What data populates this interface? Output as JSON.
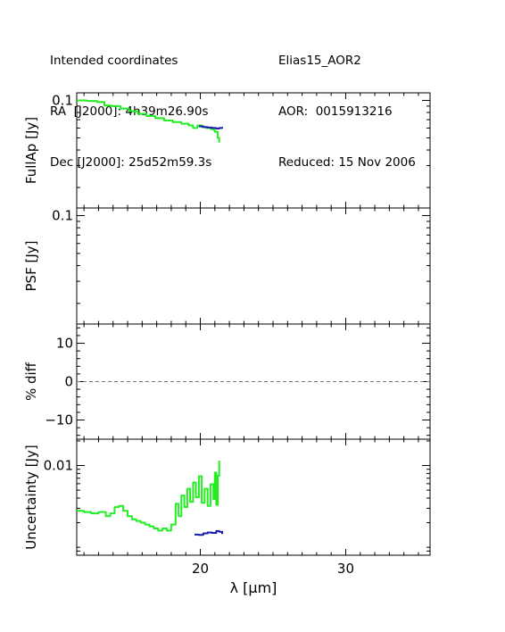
{
  "header": {
    "left": [
      "Intended coordinates",
      "RA  [J2000]: 4h39m26.90s",
      "Dec [J2000]: 25d52m59.3s"
    ],
    "right": [
      "Elias15_AOR2",
      "AOR:  0015913216",
      "Reduced: 15 Nov 2006"
    ]
  },
  "colors": {
    "green": "#22ee22",
    "blue": "#1a1ab0",
    "axis": "#000000",
    "dash": "#777777"
  },
  "chart_data": [
    {
      "type": "line",
      "ylabel": "FullAp [Jy]",
      "yscale": "log",
      "ylim": [
        0.0137,
        0.115
      ],
      "xlim": [
        11.5,
        35.8
      ],
      "yticks": [
        {
          "value": 0.1,
          "label": "0.1"
        }
      ],
      "series": [
        {
          "color": "green",
          "x": [
            11.5,
            12.2,
            12.9,
            13.4,
            13.9,
            14.5,
            15.1,
            15.7,
            16.3,
            16.9,
            17.5,
            18.1,
            18.7,
            19.2,
            19.5,
            19.8,
            20.1,
            20.4,
            20.7,
            20.9,
            21.0,
            21.2,
            21.3
          ],
          "y": [
            0.1,
            0.099,
            0.097,
            0.091,
            0.09,
            0.086,
            0.082,
            0.078,
            0.075,
            0.072,
            0.069,
            0.067,
            0.065,
            0.063,
            0.06,
            0.063,
            0.061,
            0.06,
            0.059,
            0.058,
            0.056,
            0.05,
            0.046
          ]
        },
        {
          "color": "blue",
          "x": [
            19.9,
            20.2,
            20.5,
            20.8,
            21.1,
            21.3,
            21.5
          ],
          "y": [
            0.062,
            0.061,
            0.0605,
            0.06,
            0.0595,
            0.06,
            0.0612
          ]
        }
      ]
    },
    {
      "type": "line",
      "ylabel": "PSF [Jy]",
      "yscale": "log",
      "ylim": [
        0.0137,
        0.115
      ],
      "xlim": [
        11.5,
        35.8
      ],
      "yticks": [
        {
          "value": 0.1,
          "label": "0.1"
        }
      ],
      "series": []
    },
    {
      "type": "line",
      "ylabel": "% diff",
      "yscale": "linear",
      "ylim": [
        -15,
        15
      ],
      "xlim": [
        11.5,
        35.8
      ],
      "yticks": [
        {
          "value": 10,
          "label": "10"
        },
        {
          "value": 0,
          "label": "0"
        },
        {
          "value": -10,
          "label": "−10"
        }
      ],
      "reference_line": {
        "y": 0,
        "style": "dashed"
      },
      "series": []
    },
    {
      "type": "line",
      "ylabel": "Uncertainty [Jy]",
      "xlabel": "λ [μm]",
      "yscale": "log",
      "ylim": [
        0.0008,
        0.021
      ],
      "xlim": [
        11.5,
        35.8
      ],
      "yticks": [
        {
          "value": 0.01,
          "label": "0.01"
        }
      ],
      "xticks": [
        {
          "value": 20,
          "label": "20"
        },
        {
          "value": 30,
          "label": "30"
        }
      ],
      "series": [
        {
          "color": "green",
          "x": [
            11.5,
            12.0,
            12.5,
            13.0,
            13.5,
            13.8,
            14.1,
            14.4,
            14.7,
            15.0,
            15.3,
            15.6,
            15.9,
            16.2,
            16.5,
            16.8,
            17.1,
            17.4,
            17.7,
            18.0,
            18.3,
            18.5,
            18.7,
            18.9,
            19.1,
            19.3,
            19.5,
            19.7,
            19.9,
            20.1,
            20.3,
            20.5,
            20.7,
            20.9,
            21.0,
            21.1,
            21.2,
            21.3
          ],
          "y": [
            0.0028,
            0.0027,
            0.0026,
            0.0027,
            0.0024,
            0.0026,
            0.0031,
            0.0032,
            0.0028,
            0.0024,
            0.0022,
            0.0021,
            0.002,
            0.0019,
            0.0018,
            0.0017,
            0.0016,
            0.0017,
            0.0016,
            0.0019,
            0.0034,
            0.0024,
            0.0043,
            0.0031,
            0.0052,
            0.0036,
            0.0062,
            0.0041,
            0.0074,
            0.0035,
            0.0052,
            0.0032,
            0.0059,
            0.0039,
            0.0082,
            0.0033,
            0.0075,
            0.0115
          ]
        },
        {
          "color": "blue",
          "x": [
            19.6,
            19.9,
            20.2,
            20.5,
            20.8,
            21.1,
            21.3,
            21.5
          ],
          "y": [
            0.00143,
            0.00142,
            0.00148,
            0.00152,
            0.0015,
            0.00158,
            0.00155,
            0.00145
          ]
        }
      ]
    }
  ]
}
